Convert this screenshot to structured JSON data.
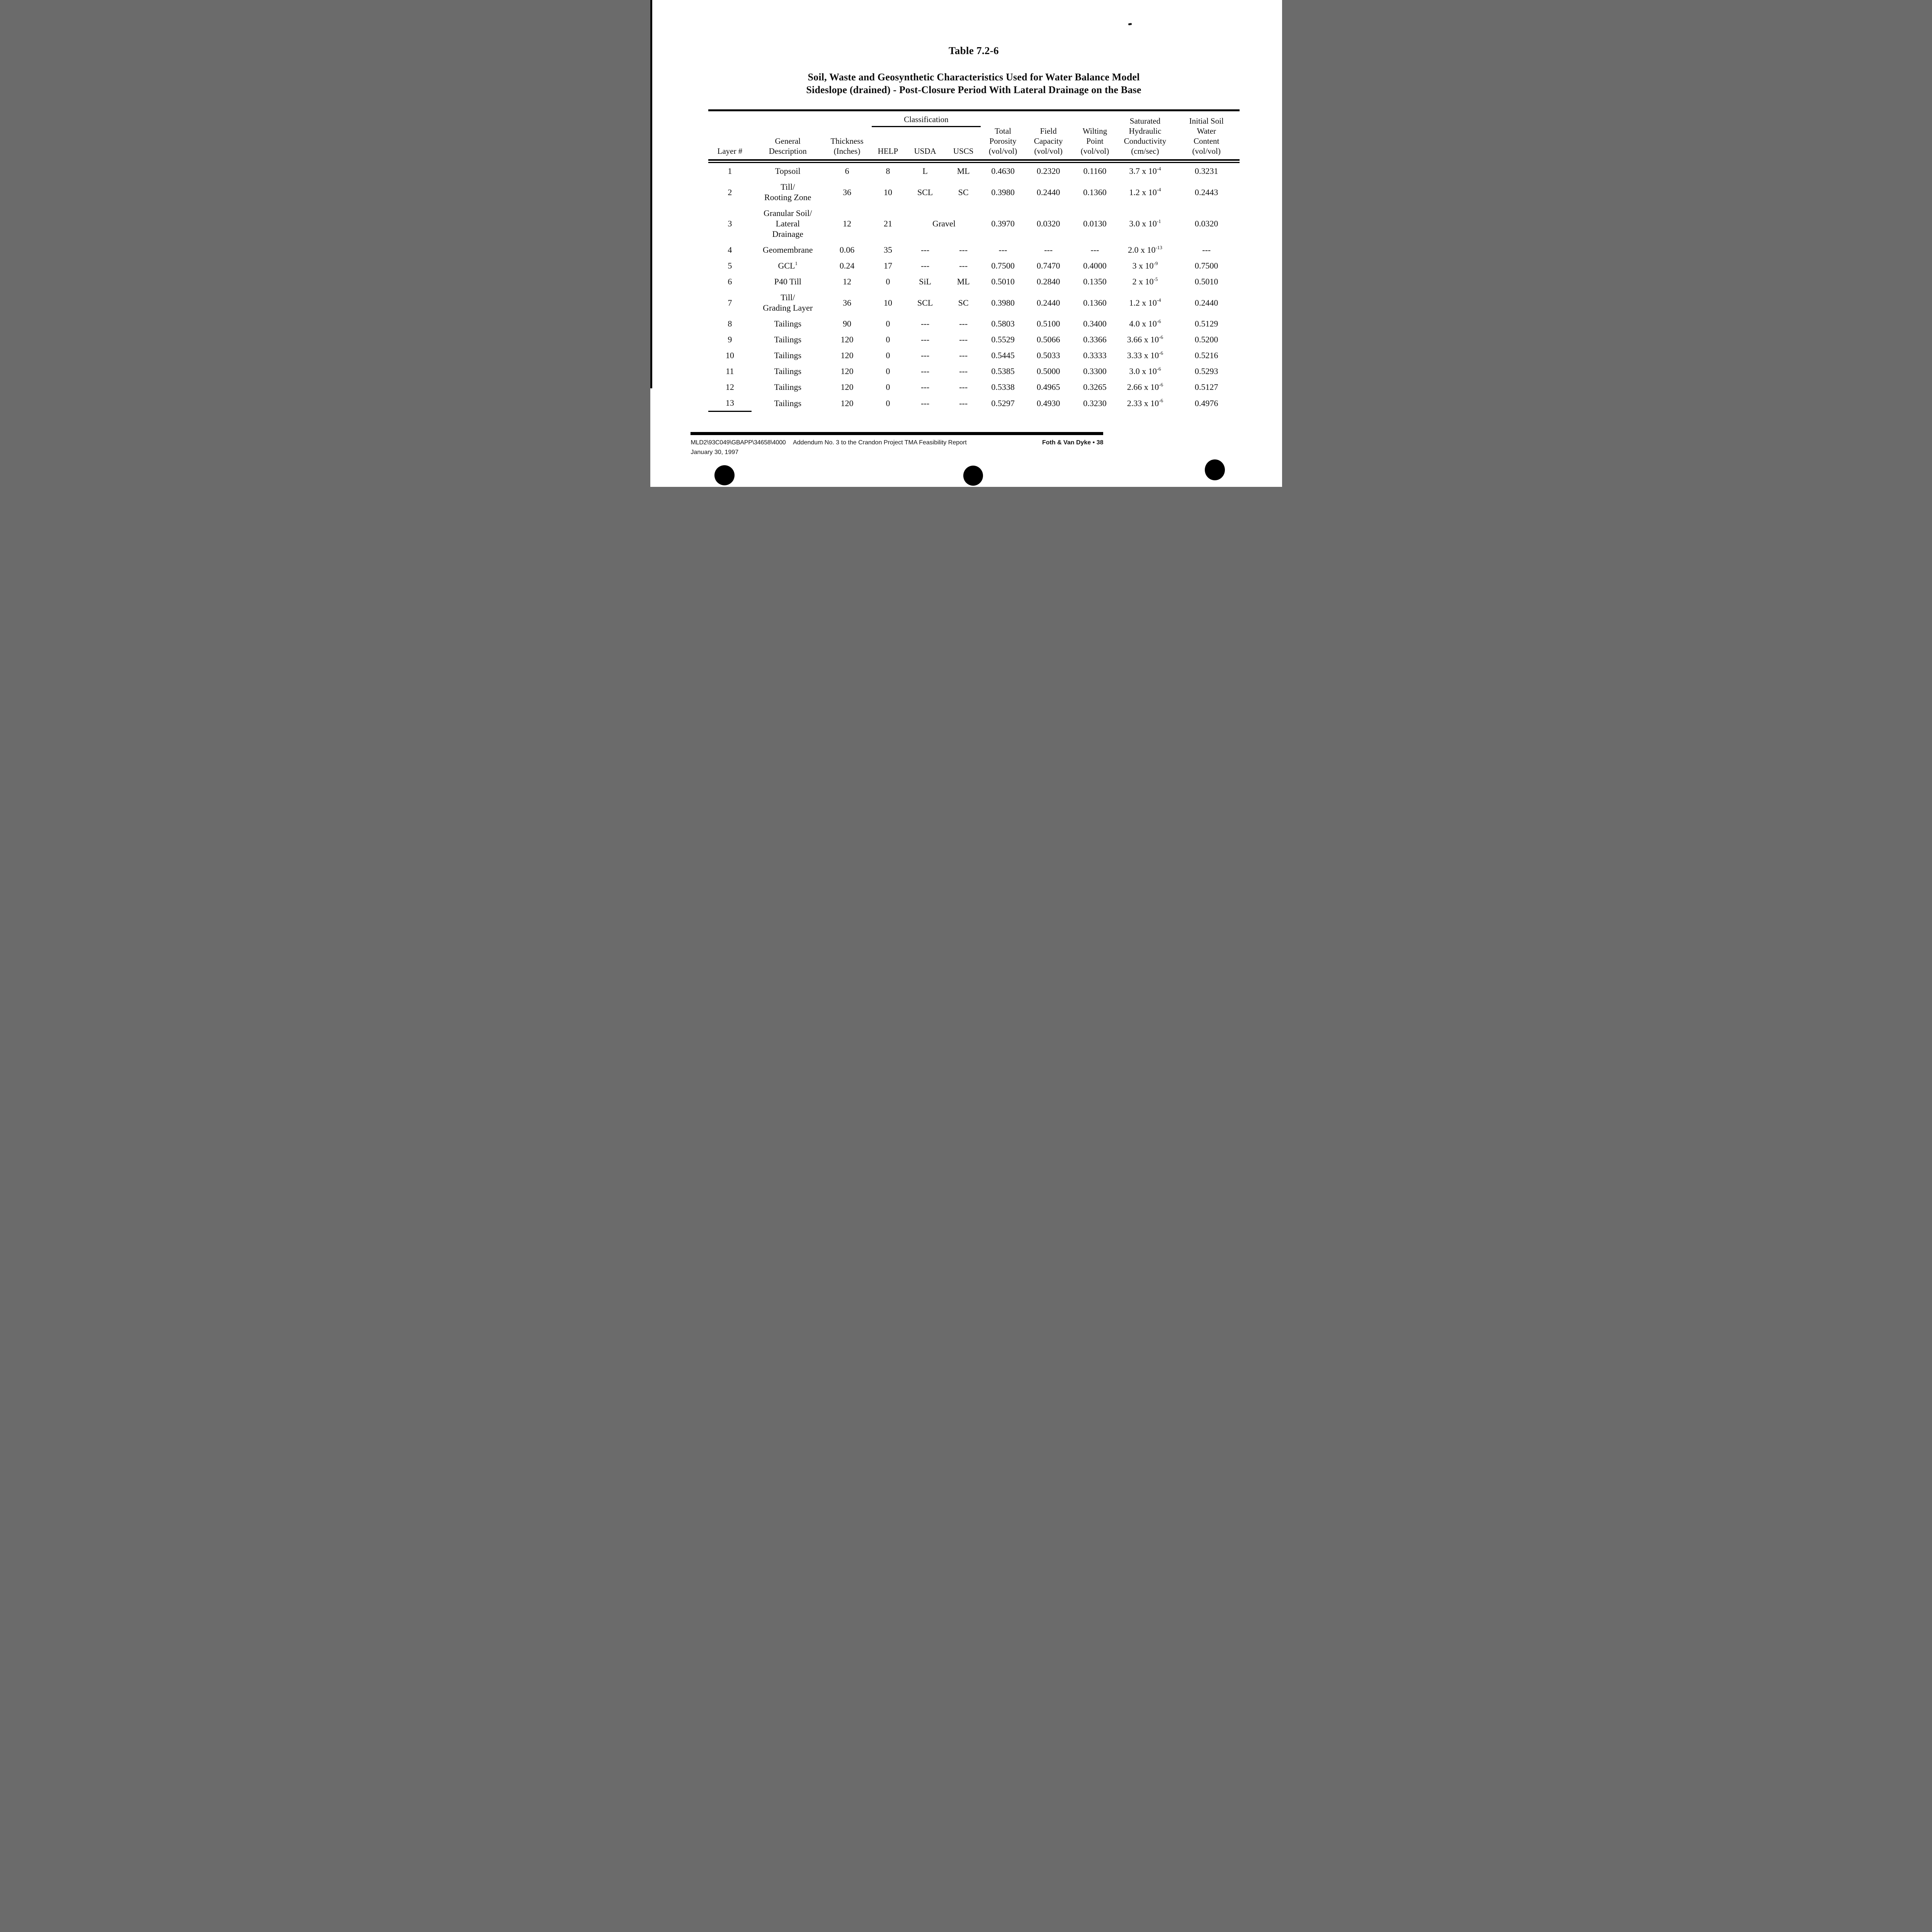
{
  "title": "Table 7.2-6",
  "subtitle": {
    "line1": "Soil, Waste and Geosynthetic Characteristics Used for Water Balance Model",
    "line2": "Sideslope (drained) - Post-Closure Period With Lateral Drainage on the Base"
  },
  "table": {
    "classification_label": "Classification",
    "headers": {
      "layer": [
        "Layer #"
      ],
      "description": [
        "General",
        "Description"
      ],
      "thickness": [
        "Thickness",
        "(Inches)"
      ],
      "help": [
        "HELP"
      ],
      "usda": [
        "USDA"
      ],
      "uscs": [
        "USCS"
      ],
      "porosity": [
        "Total",
        "Porosity",
        "(vol/vol)"
      ],
      "field_capacity": [
        "Field",
        "Capacity",
        "(vol/vol)"
      ],
      "wilting_point": [
        "Wilting",
        "Point",
        "(vol/vol)"
      ],
      "conductivity": [
        "Saturated",
        "Hydraulic",
        "Conductivity",
        "(cm/sec)"
      ],
      "initial_water": [
        "Initial Soil",
        "Water",
        "Content",
        "(vol/vol)"
      ]
    },
    "rows": [
      {
        "layer": "1",
        "desc": [
          "Topsoil"
        ],
        "sup": "",
        "thk": "6",
        "help": "8",
        "usda": "L",
        "uscs": "ML",
        "span": "",
        "por": "0.4630",
        "fc": "0.2320",
        "wp": "0.1160",
        "k": "3.7 x 10",
        "kexp": "-4",
        "init": "0.3231"
      },
      {
        "layer": "2",
        "desc": [
          "Till/",
          "Rooting Zone"
        ],
        "sup": "",
        "thk": "36",
        "help": "10",
        "usda": "SCL",
        "uscs": "SC",
        "span": "",
        "por": "0.3980",
        "fc": "0.2440",
        "wp": "0.1360",
        "k": "1.2 x 10",
        "kexp": "-4",
        "init": "0.2443"
      },
      {
        "layer": "3",
        "desc": [
          "Granular Soil/",
          "Lateral",
          "Drainage"
        ],
        "sup": "",
        "thk": "12",
        "help": "21",
        "usda": "",
        "uscs": "",
        "span": "Gravel",
        "por": "0.3970",
        "fc": "0.0320",
        "wp": "0.0130",
        "k": "3.0 x 10",
        "kexp": "-1",
        "init": "0.0320"
      },
      {
        "layer": "4",
        "desc": [
          "Geomembrane"
        ],
        "sup": "",
        "thk": "0.06",
        "help": "35",
        "usda": "---",
        "uscs": "---",
        "span": "",
        "por": "---",
        "fc": "---",
        "wp": "---",
        "k": "2.0 x 10",
        "kexp": "-13",
        "init": "---"
      },
      {
        "layer": "5",
        "desc": [
          "GCL"
        ],
        "sup": "1",
        "thk": "0.24",
        "help": "17",
        "usda": "---",
        "uscs": "---",
        "span": "",
        "por": "0.7500",
        "fc": "0.7470",
        "wp": "0.4000",
        "k": "3 x 10",
        "kexp": "-9",
        "init": "0.7500"
      },
      {
        "layer": "6",
        "desc": [
          "P40 Till"
        ],
        "sup": "",
        "thk": "12",
        "help": "0",
        "usda": "SiL",
        "uscs": "ML",
        "span": "",
        "por": "0.5010",
        "fc": "0.2840",
        "wp": "0.1350",
        "k": "2 x 10",
        "kexp": "-5",
        "init": "0.5010"
      },
      {
        "layer": "7",
        "desc": [
          "Till/",
          "Grading Layer"
        ],
        "sup": "",
        "thk": "36",
        "help": "10",
        "usda": "SCL",
        "uscs": "SC",
        "span": "",
        "por": "0.3980",
        "fc": "0.2440",
        "wp": "0.1360",
        "k": "1.2 x 10",
        "kexp": "-4",
        "init": "0.2440"
      },
      {
        "layer": "8",
        "desc": [
          "Tailings"
        ],
        "sup": "",
        "thk": "90",
        "help": "0",
        "usda": "---",
        "uscs": "---",
        "span": "",
        "por": "0.5803",
        "fc": "0.5100",
        "wp": "0.3400",
        "k": "4.0 x 10",
        "kexp": "-6",
        "init": "0.5129"
      },
      {
        "layer": "9",
        "desc": [
          "Tailings"
        ],
        "sup": "",
        "thk": "120",
        "help": "0",
        "usda": "---",
        "uscs": "---",
        "span": "",
        "por": "0.5529",
        "fc": "0.5066",
        "wp": "0.3366",
        "k": "3.66 x 10",
        "kexp": "-6",
        "init": "0.5200"
      },
      {
        "layer": "10",
        "desc": [
          "Tailings"
        ],
        "sup": "",
        "thk": "120",
        "help": "0",
        "usda": "---",
        "uscs": "---",
        "span": "",
        "por": "0.5445",
        "fc": "0.5033",
        "wp": "0.3333",
        "k": "3.33 x 10",
        "kexp": "-6",
        "init": "0.5216"
      },
      {
        "layer": "11",
        "desc": [
          "Tailings"
        ],
        "sup": "",
        "thk": "120",
        "help": "0",
        "usda": "---",
        "uscs": "---",
        "span": "",
        "por": "0.5385",
        "fc": "0.5000",
        "wp": "0.3300",
        "k": "3.0 x 10",
        "kexp": "-6",
        "init": "0.5293"
      },
      {
        "layer": "12",
        "desc": [
          "Tailings"
        ],
        "sup": "",
        "thk": "120",
        "help": "0",
        "usda": "---",
        "uscs": "---",
        "span": "",
        "por": "0.5338",
        "fc": "0.4965",
        "wp": "0.3265",
        "k": "2.66 x 10",
        "kexp": "-6",
        "init": "0.5127"
      },
      {
        "layer": "13",
        "desc": [
          "Tailings"
        ],
        "sup": "",
        "thk": "120",
        "help": "0",
        "usda": "---",
        "uscs": "---",
        "span": "",
        "por": "0.5297",
        "fc": "0.4930",
        "wp": "0.3230",
        "k": "2.33 x 10",
        "kexp": "-6",
        "init": "0.4976"
      }
    ]
  },
  "footer": {
    "doc_id": "MLD2\\93C049\\GBAPP\\34658\\4000",
    "doc_title": "Addendum No. 3 to the Crandon Project TMA Feasibility Report",
    "date": "January 30, 1997",
    "brand": "Foth & Van Dyke • 38"
  }
}
